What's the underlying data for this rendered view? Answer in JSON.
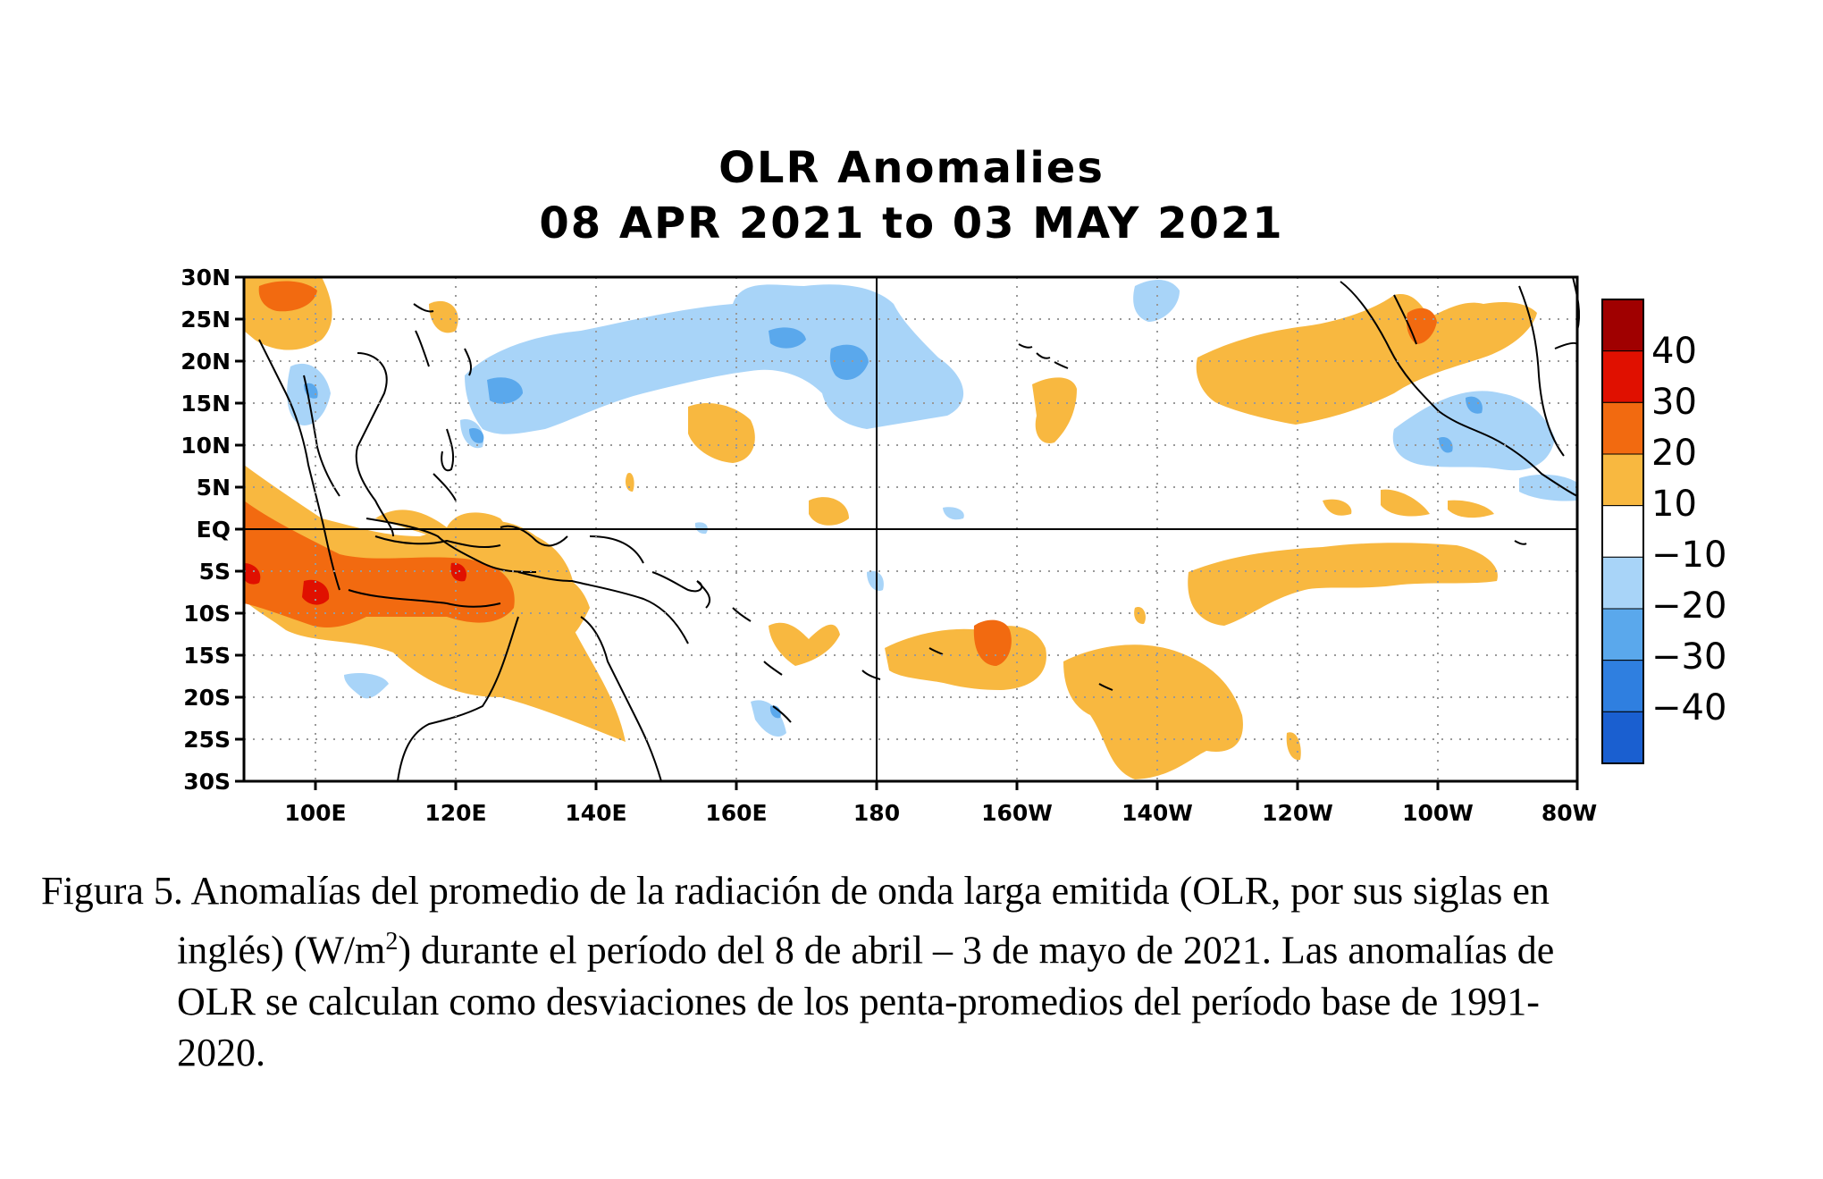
{
  "figure": {
    "title_line1": "OLR Anomalies",
    "title_line2": "08 APR 2021 to 03 MAY 2021"
  },
  "map": {
    "lat_labels": [
      "30N",
      "25N",
      "20N",
      "15N",
      "10N",
      "5N",
      "EQ",
      "5S",
      "10S",
      "15S",
      "20S",
      "25S",
      "30S"
    ],
    "lon_labels": [
      "100E",
      "120E",
      "140E",
      "160E",
      "180",
      "160W",
      "140W",
      "120W",
      "100W",
      "80W"
    ],
    "lon_extent": [
      "90E",
      "80W"
    ],
    "lat_extent": [
      "30S",
      "30N"
    ],
    "grid": "dotted every 10° lon / 5° lat",
    "reference_lines": [
      "EQ",
      "180"
    ]
  },
  "colorbar": {
    "labels": [
      "40",
      "30",
      "20",
      "10",
      "−10",
      "−20",
      "−30",
      "−40"
    ],
    "colors": [
      "#a00000",
      "#e01000",
      "#f26a10",
      "#f8b840",
      "#ffffff",
      "#a8d4f8",
      "#5aa8ec",
      "#2f7fe0",
      "#1a5fd0"
    ]
  },
  "caption": {
    "line1": "Figura 5. Anomalías del promedio de la radiación de onda larga emitida (OLR, por sus siglas en",
    "line2_a": "inglés) (W/m",
    "line2_sup": "2",
    "line2_b": ") durante el período del 8 de abril – 3 de mayo de 2021.  Las anomalías de",
    "line3": "OLR se calculan como desviaciones de los penta-promedios del período base de 1991-",
    "line4": "2020."
  }
}
